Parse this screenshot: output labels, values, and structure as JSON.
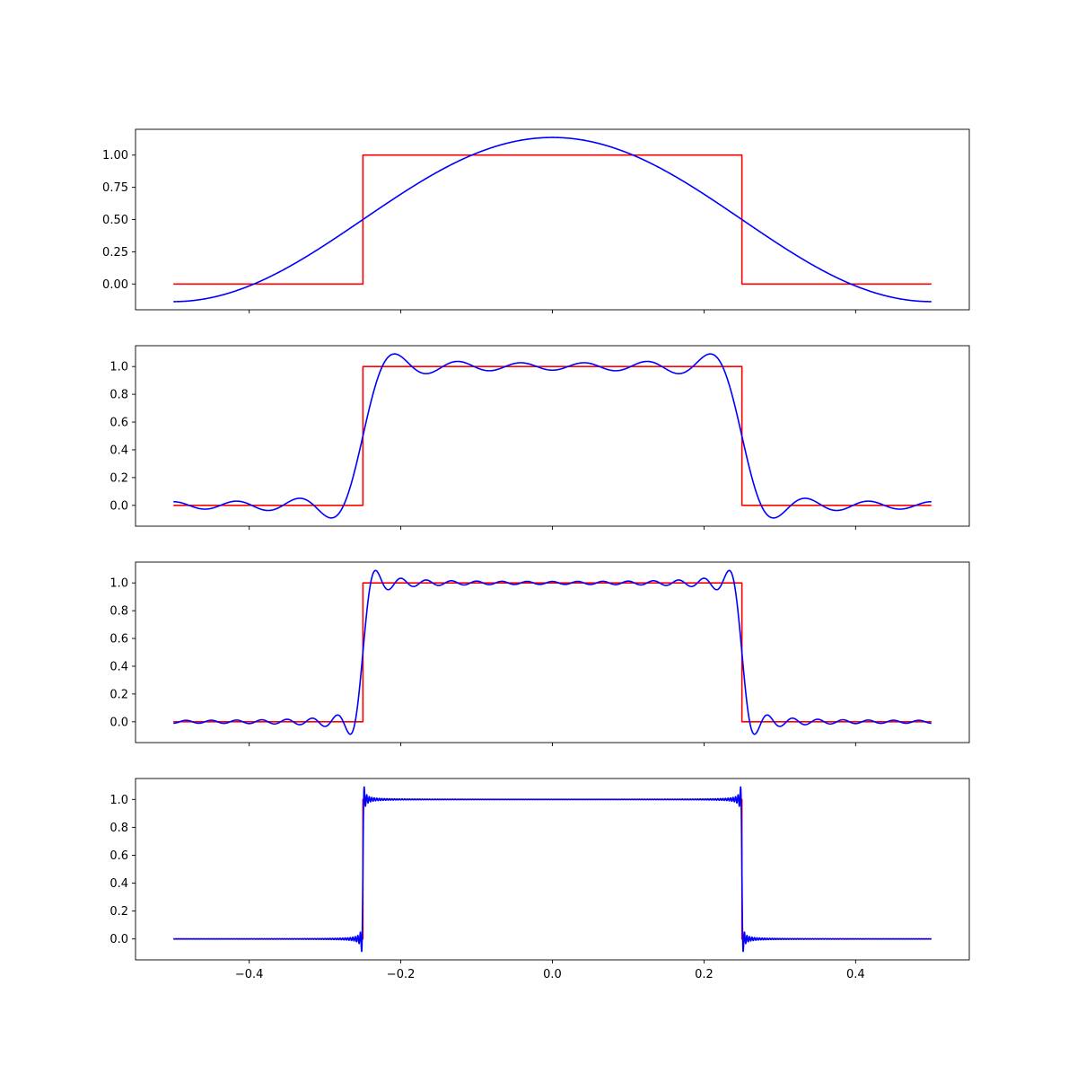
{
  "chart_data": [
    {
      "type": "line",
      "xlim": [
        -0.55,
        0.55
      ],
      "ylim": [
        -0.2,
        1.2
      ],
      "yticks": [
        0.0,
        0.25,
        0.5,
        0.75,
        1.0
      ],
      "ytick_labels": [
        "0.00",
        "0.25",
        "0.50",
        "0.75",
        "1.00"
      ],
      "xticks": [
        -0.4,
        -0.2,
        0.0,
        0.2,
        0.4
      ],
      "xtick_labels": [],
      "grid": false,
      "series": [
        {
          "color": "#ff0000",
          "kind": "step",
          "x": [
            -0.5,
            -0.25,
            -0.25,
            0.25,
            0.25,
            0.5
          ],
          "y": [
            0,
            0,
            1,
            1,
            0,
            0
          ]
        },
        {
          "color": "#0000ff",
          "kind": "fourier",
          "harmonics": 1,
          "x_range": [
            -0.5,
            0.5
          ],
          "peak": 1.137,
          "minimum": -0.137
        }
      ]
    },
    {
      "type": "line",
      "xlim": [
        -0.55,
        0.55
      ],
      "ylim": [
        -0.15,
        1.15
      ],
      "yticks": [
        0.0,
        0.2,
        0.4,
        0.6,
        0.8,
        1.0
      ],
      "ytick_labels": [
        "0.0",
        "0.2",
        "0.4",
        "0.6",
        "0.8",
        "1.0"
      ],
      "xticks": [
        -0.4,
        -0.2,
        0.0,
        0.2,
        0.4
      ],
      "xtick_labels": [],
      "grid": false,
      "series": [
        {
          "color": "#ff0000",
          "kind": "step",
          "x": [
            -0.5,
            -0.25,
            -0.25,
            0.25,
            0.25,
            0.5
          ],
          "y": [
            0,
            0,
            1,
            1,
            0,
            0
          ]
        },
        {
          "color": "#0000ff",
          "kind": "fourier",
          "harmonics": 12,
          "x_range": [
            -0.5,
            0.5
          ],
          "peak": 1.09,
          "minimum": -0.09
        }
      ]
    },
    {
      "type": "line",
      "xlim": [
        -0.55,
        0.55
      ],
      "ylim": [
        -0.15,
        1.15
      ],
      "yticks": [
        0.0,
        0.2,
        0.4,
        0.6,
        0.8,
        1.0
      ],
      "ytick_labels": [
        "0.0",
        "0.2",
        "0.4",
        "0.6",
        "0.8",
        "1.0"
      ],
      "xticks": [
        -0.4,
        -0.2,
        0.0,
        0.2,
        0.4
      ],
      "xtick_labels": [],
      "grid": false,
      "series": [
        {
          "color": "#ff0000",
          "kind": "step",
          "x": [
            -0.5,
            -0.25,
            -0.25,
            0.25,
            0.25,
            0.5
          ],
          "y": [
            0,
            0,
            1,
            1,
            0,
            0
          ]
        },
        {
          "color": "#0000ff",
          "kind": "fourier",
          "harmonics": 30,
          "x_range": [
            -0.5,
            0.5
          ],
          "peak": 1.09,
          "minimum": -0.09
        }
      ]
    },
    {
      "type": "line",
      "xlim": [
        -0.55,
        0.55
      ],
      "ylim": [
        -0.15,
        1.15
      ],
      "yticks": [
        0.0,
        0.2,
        0.4,
        0.6,
        0.8,
        1.0
      ],
      "ytick_labels": [
        "0.0",
        "0.2",
        "0.4",
        "0.6",
        "0.8",
        "1.0"
      ],
      "xticks": [
        -0.4,
        -0.2,
        0.0,
        0.2,
        0.4
      ],
      "xtick_labels": [
        "−0.4",
        "−0.2",
        "0.0",
        "0.2",
        "0.4"
      ],
      "grid": false,
      "series": [
        {
          "color": "#ff0000",
          "kind": "step",
          "x": [
            -0.5,
            -0.25,
            -0.25,
            0.25,
            0.25,
            0.5
          ],
          "y": [
            0,
            0,
            1,
            1,
            0,
            0
          ]
        },
        {
          "color": "#0000ff",
          "kind": "fourier",
          "harmonics": 300,
          "x_range": [
            -0.5,
            0.5
          ],
          "peak": 1.09,
          "minimum": -0.09
        }
      ]
    }
  ]
}
